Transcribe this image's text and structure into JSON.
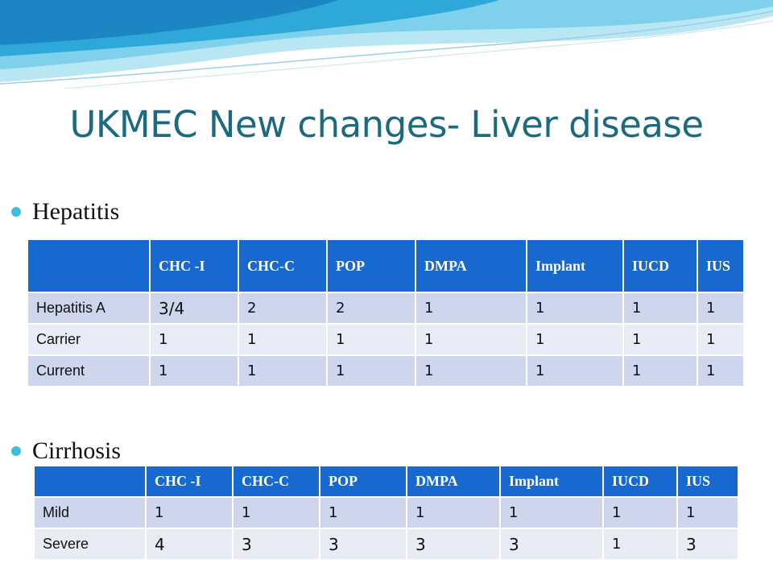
{
  "title": "UKMEC New changes- Liver disease",
  "sections": {
    "hepatitis": {
      "heading": "Hepatitis",
      "columns": [
        "",
        "CHC -I",
        "CHC-C",
        "POP",
        "DMPA",
        "Implant",
        "IUCD",
        "IUS"
      ],
      "rows": [
        [
          "Hepatitis A",
          "3/4",
          "2",
          "2",
          "1",
          "1",
          "1",
          "1"
        ],
        [
          "Carrier",
          "1",
          "1",
          "1",
          "1",
          "1",
          "1",
          "1"
        ],
        [
          "Current",
          "1",
          "1",
          "1",
          "1",
          "1",
          "1",
          "1"
        ]
      ]
    },
    "cirrhosis": {
      "heading": "Cirrhosis",
      "columns": [
        "",
        "CHC -I",
        "CHC-C",
        "POP",
        "DMPA",
        "Implant",
        "IUCD",
        "IUS"
      ],
      "rows": [
        [
          "Mild",
          "1",
          "1",
          "1",
          "1",
          "1",
          "1",
          "1"
        ],
        [
          "Severe",
          "4",
          "3",
          "3",
          "3",
          "3",
          "1",
          "3"
        ]
      ]
    }
  },
  "colors": {
    "title": "#1a6a80",
    "header_bg": "#1769cf",
    "row_odd": "#cdd6ec",
    "row_even": "#e8ecf6",
    "bullet": "#3cbfdc"
  }
}
